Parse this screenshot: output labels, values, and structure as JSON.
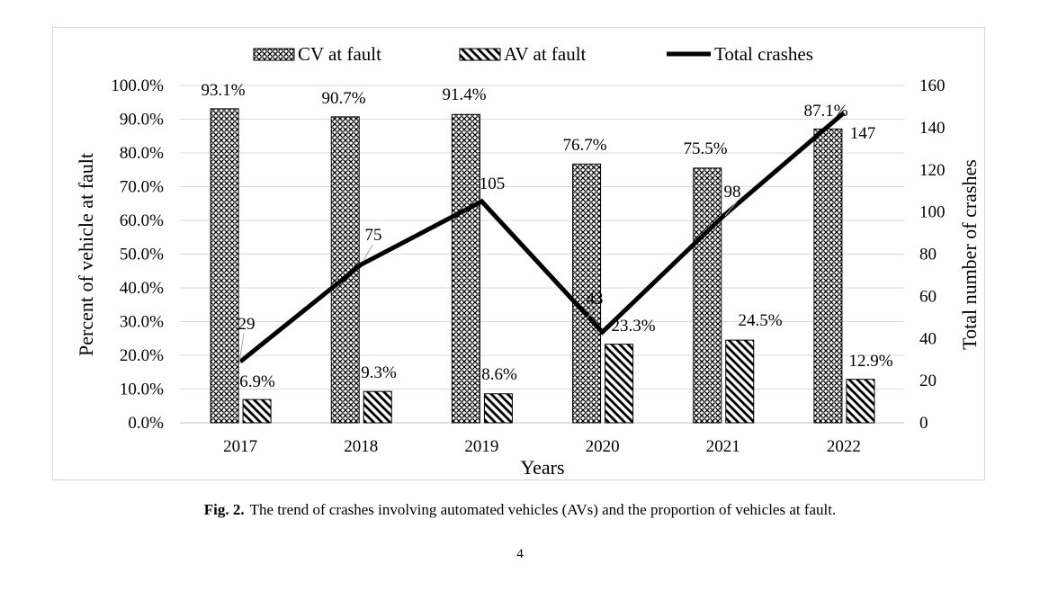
{
  "caption": {
    "label": "Fig. 2.",
    "text": "The trend of crashes involving automated vehicles (AVs) and the proportion of vehicles at fault."
  },
  "page_number": "4",
  "chart_data": {
    "type": "bar",
    "categories": [
      "2017",
      "2018",
      "2019",
      "2020",
      "2021",
      "2022"
    ],
    "xlabel": "Years",
    "ylabel": "Percent of vehicle at fault",
    "y2label": "Total number of crashes",
    "ylim": [
      0,
      100
    ],
    "y2lim": [
      0,
      160
    ],
    "yticks": [
      "0.0%",
      "10.0%",
      "20.0%",
      "30.0%",
      "40.0%",
      "50.0%",
      "60.0%",
      "70.0%",
      "80.0%",
      "90.0%",
      "100.0%"
    ],
    "y2ticks": [
      "0",
      "20",
      "40",
      "60",
      "80",
      "100",
      "120",
      "140",
      "160"
    ],
    "grid": true,
    "legend_position": "top",
    "series": [
      {
        "name": "CV at fault",
        "kind": "bar",
        "pattern": "crosshatch",
        "values": [
          93.1,
          90.7,
          91.4,
          76.7,
          75.5,
          87.1
        ],
        "labels": [
          "93.1%",
          "90.7%",
          "91.4%",
          "76.7%",
          "75.5%",
          "87.1%"
        ]
      },
      {
        "name": "AV at fault",
        "kind": "bar",
        "pattern": "diagonal-stripes",
        "values": [
          6.9,
          9.3,
          8.6,
          23.3,
          24.5,
          12.9
        ],
        "labels": [
          "6.9%",
          "9.3%",
          "8.6%",
          "23.3%",
          "24.5%",
          "12.9%"
        ]
      },
      {
        "name": "Total crashes",
        "kind": "line",
        "axis": "secondary",
        "values": [
          29,
          75,
          105,
          43,
          98,
          147
        ],
        "labels": [
          "29",
          "75",
          "105",
          "43",
          "98",
          "147"
        ]
      }
    ]
  }
}
